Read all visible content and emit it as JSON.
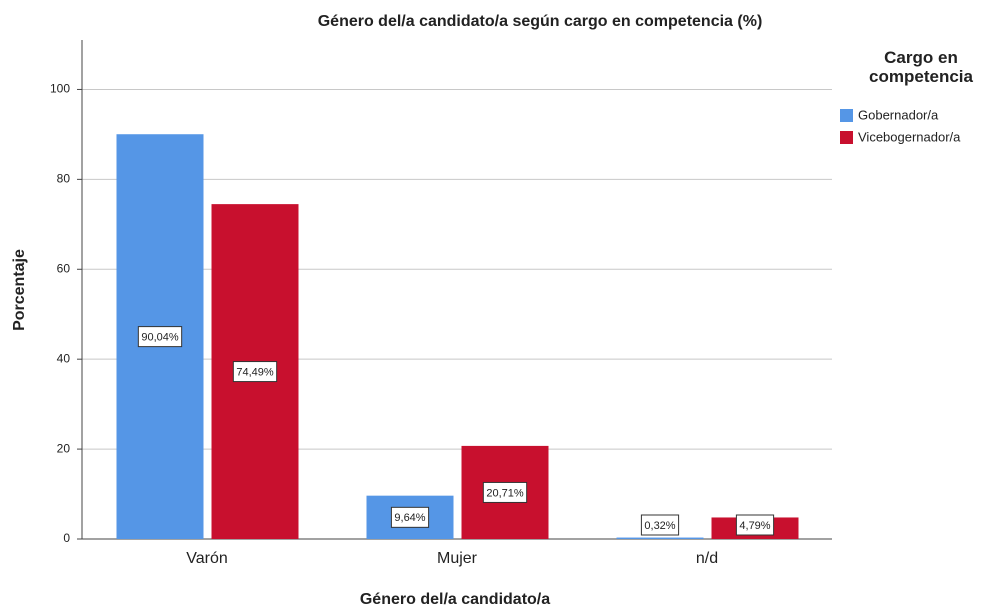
{
  "chart_data": {
    "type": "bar",
    "title": "Género del/a candidato/a según cargo en competencia (%)",
    "x_label": "Género del/a candidato/a",
    "y_label": "Porcentaje",
    "categories": [
      "Varón",
      "Mujer",
      "n/d"
    ],
    "legend_title": "Cargo en competencia",
    "series": [
      {
        "name": "Gobernador/a",
        "color": "#5596e6",
        "values": [
          90.04,
          9.64,
          0.32
        ],
        "value_labels": [
          "90,04%",
          "9,64%",
          "0,32%"
        ]
      },
      {
        "name": "Vicebogernador/a",
        "color": "#c8102e",
        "values": [
          74.49,
          20.71,
          4.79
        ],
        "value_labels": [
          "74,49%",
          "20,71%",
          "4,79%"
        ]
      }
    ],
    "ylim": [
      0,
      111
    ],
    "yticks": [
      0,
      20,
      40,
      60,
      80,
      100
    ],
    "grid": true
  }
}
